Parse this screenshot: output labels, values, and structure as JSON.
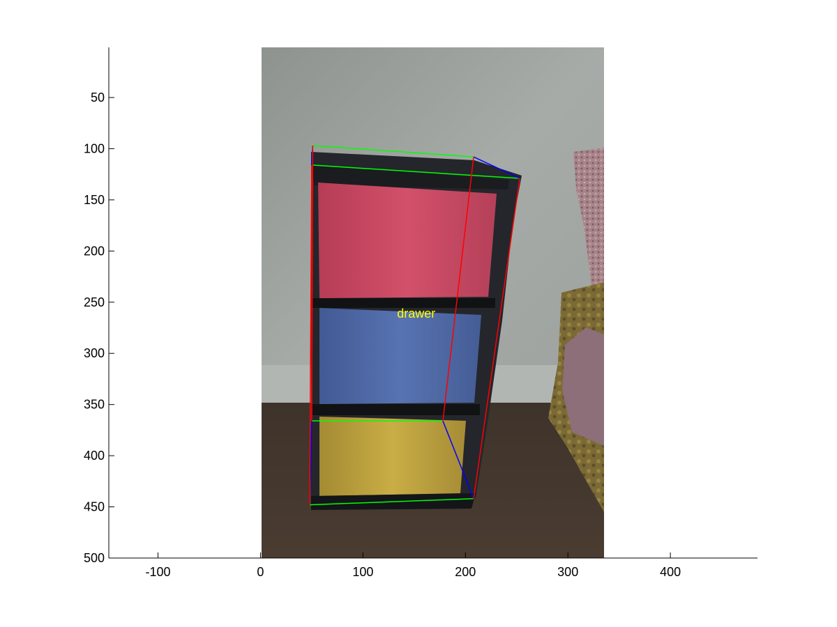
{
  "figure": {
    "axis_range": {
      "x": [
        -148,
        485
      ],
      "y": [
        500,
        1
      ]
    },
    "y_reversed": true,
    "x_ticks": [
      -100,
      0,
      100,
      200,
      300,
      400
    ],
    "y_ticks": [
      50,
      100,
      150,
      200,
      250,
      300,
      350,
      400,
      450,
      500
    ],
    "image_extent": {
      "x": [
        0,
        335
      ],
      "y": [
        1,
        500
      ]
    },
    "annotation": {
      "label": "drawer",
      "label_color": "#ffff00",
      "label_pos": [
        152,
        261
      ]
    }
  },
  "scene": {
    "objects": [
      "wall",
      "floor",
      "plastic storage drawer unit",
      "cushion",
      "patterned fabric"
    ],
    "drawer_colors": {
      "top": "#c9445e",
      "middle": "#4f6aa8",
      "bottom": "#c2a640"
    }
  },
  "box3d": {
    "color_front": "#ff0000",
    "color_top": "#00ff00",
    "color_depth": "#0000ff",
    "top_front": [
      [
        50,
        116
      ],
      [
        253,
        129
      ]
    ],
    "top_back": [
      [
        51,
        97
      ],
      [
        208,
        108
      ]
    ],
    "bottom_front": [
      [
        48,
        448
      ],
      [
        208,
        442
      ]
    ],
    "bottom_back": [
      [
        50,
        366
      ],
      [
        178,
        366
      ]
    ],
    "right_front_edge": [
      [
        253,
        129
      ],
      [
        208,
        442
      ]
    ],
    "right_back_edge": [
      [
        208,
        108
      ],
      [
        178,
        366
      ]
    ]
  }
}
